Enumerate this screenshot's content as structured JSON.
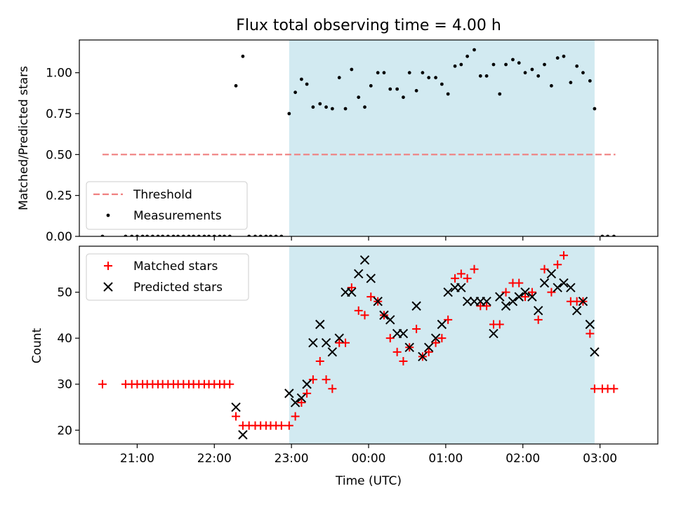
{
  "chart_data": {
    "title": "Flux total observing time = 4.00 h",
    "xlabel": "Time (UTC)",
    "x_unit": "hours (UTC, values past 24 are after midnight)",
    "xlim": [
      20.25,
      27.75
    ],
    "xticks": [
      {
        "value": 21,
        "label": "21:00"
      },
      {
        "value": 22,
        "label": "22:00"
      },
      {
        "value": 23,
        "label": "23:00"
      },
      {
        "value": 24,
        "label": "00:00"
      },
      {
        "value": 25,
        "label": "01:00"
      },
      {
        "value": 26,
        "label": "02:00"
      },
      {
        "value": 27,
        "label": "03:00"
      }
    ],
    "observing_window": {
      "start": 22.97,
      "end": 26.93,
      "color": "#add8e6"
    },
    "panels": [
      {
        "type": "scatter",
        "ylabel": "Matched/Predicted stars",
        "ylim": [
          0,
          1.2
        ],
        "yticks": [
          {
            "value": 0,
            "label": "0.00"
          },
          {
            "value": 0.25,
            "label": "0.25"
          },
          {
            "value": 0.5,
            "label": "0.50"
          },
          {
            "value": 0.75,
            "label": "0.75"
          },
          {
            "value": 1.0,
            "label": "1.00"
          }
        ],
        "legend_position": "lower-left",
        "series": [
          {
            "name": "Threshold",
            "style": "dashed-line",
            "color": "#f08080",
            "x": [
              20.55,
              27.2
            ],
            "y": [
              0.5,
              0.5
            ]
          },
          {
            "name": "Measurements",
            "style": "dot",
            "color": "#000000",
            "points": [
              [
                20.55,
                0
              ],
              [
                20.85,
                0
              ],
              [
                20.93,
                0
              ],
              [
                21.0,
                0
              ],
              [
                21.07,
                0
              ],
              [
                21.13,
                0
              ],
              [
                21.2,
                0
              ],
              [
                21.27,
                0
              ],
              [
                21.33,
                0
              ],
              [
                21.4,
                0
              ],
              [
                21.47,
                0
              ],
              [
                21.53,
                0
              ],
              [
                21.6,
                0
              ],
              [
                21.67,
                0
              ],
              [
                21.73,
                0
              ],
              [
                21.8,
                0
              ],
              [
                21.87,
                0
              ],
              [
                21.93,
                0
              ],
              [
                22.0,
                0
              ],
              [
                22.07,
                0
              ],
              [
                22.13,
                0
              ],
              [
                22.2,
                0
              ],
              [
                22.28,
                0.92
              ],
              [
                22.37,
                1.1
              ],
              [
                22.45,
                0
              ],
              [
                22.53,
                0
              ],
              [
                22.6,
                0
              ],
              [
                22.67,
                0
              ],
              [
                22.73,
                0
              ],
              [
                22.8,
                0
              ],
              [
                22.87,
                0
              ],
              [
                22.97,
                0.75
              ],
              [
                23.05,
                0.88
              ],
              [
                23.13,
                0.96
              ],
              [
                23.2,
                0.93
              ],
              [
                23.28,
                0.79
              ],
              [
                23.37,
                0.81
              ],
              [
                23.45,
                0.79
              ],
              [
                23.53,
                0.78
              ],
              [
                23.62,
                0.97
              ],
              [
                23.7,
                0.78
              ],
              [
                23.78,
                1.02
              ],
              [
                23.87,
                0.85
              ],
              [
                23.95,
                0.79
              ],
              [
                24.03,
                0.92
              ],
              [
                24.12,
                1.0
              ],
              [
                24.2,
                1.0
              ],
              [
                24.28,
                0.9
              ],
              [
                24.37,
                0.9
              ],
              [
                24.45,
                0.85
              ],
              [
                24.53,
                1.0
              ],
              [
                24.62,
                0.89
              ],
              [
                24.7,
                1.0
              ],
              [
                24.78,
                0.97
              ],
              [
                24.87,
                0.97
              ],
              [
                24.95,
                0.93
              ],
              [
                25.03,
                0.87
              ],
              [
                25.12,
                1.04
              ],
              [
                25.2,
                1.05
              ],
              [
                25.28,
                1.1
              ],
              [
                25.37,
                1.14
              ],
              [
                25.45,
                0.98
              ],
              [
                25.53,
                0.98
              ],
              [
                25.62,
                1.05
              ],
              [
                25.7,
                0.87
              ],
              [
                25.78,
                1.05
              ],
              [
                25.87,
                1.08
              ],
              [
                25.95,
                1.06
              ],
              [
                26.03,
                1.0
              ],
              [
                26.12,
                1.02
              ],
              [
                26.2,
                0.98
              ],
              [
                26.28,
                1.05
              ],
              [
                26.37,
                0.92
              ],
              [
                26.45,
                1.09
              ],
              [
                26.53,
                1.1
              ],
              [
                26.62,
                0.94
              ],
              [
                26.7,
                1.04
              ],
              [
                26.78,
                1.0
              ],
              [
                26.87,
                0.95
              ],
              [
                26.93,
                0.78
              ],
              [
                27.03,
                0
              ],
              [
                27.1,
                0
              ],
              [
                27.18,
                0
              ]
            ]
          }
        ]
      },
      {
        "type": "scatter",
        "ylabel": "Count",
        "ylim": [
          17,
          60
        ],
        "yticks": [
          {
            "value": 20,
            "label": "20"
          },
          {
            "value": 30,
            "label": "30"
          },
          {
            "value": 40,
            "label": "40"
          },
          {
            "value": 50,
            "label": "50"
          }
        ],
        "legend_position": "top-left",
        "series": [
          {
            "name": "Matched stars",
            "style": "plus",
            "color": "#ff0000",
            "points": [
              [
                20.55,
                30
              ],
              [
                20.85,
                30
              ],
              [
                20.93,
                30
              ],
              [
                21.0,
                30
              ],
              [
                21.07,
                30
              ],
              [
                21.13,
                30
              ],
              [
                21.2,
                30
              ],
              [
                21.27,
                30
              ],
              [
                21.33,
                30
              ],
              [
                21.4,
                30
              ],
              [
                21.47,
                30
              ],
              [
                21.53,
                30
              ],
              [
                21.6,
                30
              ],
              [
                21.67,
                30
              ],
              [
                21.73,
                30
              ],
              [
                21.8,
                30
              ],
              [
                21.87,
                30
              ],
              [
                21.93,
                30
              ],
              [
                22.0,
                30
              ],
              [
                22.07,
                30
              ],
              [
                22.13,
                30
              ],
              [
                22.2,
                30
              ],
              [
                22.28,
                23
              ],
              [
                22.37,
                21
              ],
              [
                22.45,
                21
              ],
              [
                22.53,
                21
              ],
              [
                22.6,
                21
              ],
              [
                22.67,
                21
              ],
              [
                22.73,
                21
              ],
              [
                22.8,
                21
              ],
              [
                22.87,
                21
              ],
              [
                22.97,
                21
              ],
              [
                23.05,
                23
              ],
              [
                23.13,
                26
              ],
              [
                23.2,
                28
              ],
              [
                23.28,
                31
              ],
              [
                23.37,
                35
              ],
              [
                23.45,
                31
              ],
              [
                23.53,
                29
              ],
              [
                23.62,
                39
              ],
              [
                23.7,
                39
              ],
              [
                23.78,
                51
              ],
              [
                23.87,
                46
              ],
              [
                23.95,
                45
              ],
              [
                24.03,
                49
              ],
              [
                24.12,
                48
              ],
              [
                24.2,
                45
              ],
              [
                24.28,
                40
              ],
              [
                24.37,
                37
              ],
              [
                24.45,
                35
              ],
              [
                24.53,
                38
              ],
              [
                24.62,
                42
              ],
              [
                24.7,
                36
              ],
              [
                24.78,
                37
              ],
              [
                24.87,
                39
              ],
              [
                24.95,
                40
              ],
              [
                25.03,
                44
              ],
              [
                25.12,
                53
              ],
              [
                25.2,
                54
              ],
              [
                25.28,
                53
              ],
              [
                25.37,
                55
              ],
              [
                25.45,
                47
              ],
              [
                25.53,
                47
              ],
              [
                25.62,
                43
              ],
              [
                25.7,
                43
              ],
              [
                25.78,
                50
              ],
              [
                25.87,
                52
              ],
              [
                25.95,
                52
              ],
              [
                26.03,
                49
              ],
              [
                26.12,
                50
              ],
              [
                26.2,
                44
              ],
              [
                26.28,
                55
              ],
              [
                26.37,
                50
              ],
              [
                26.45,
                56
              ],
              [
                26.53,
                58
              ],
              [
                26.62,
                48
              ],
              [
                26.7,
                48
              ],
              [
                26.78,
                48
              ],
              [
                26.87,
                41
              ],
              [
                26.93,
                29
              ],
              [
                27.03,
                29
              ],
              [
                27.1,
                29
              ],
              [
                27.18,
                29
              ]
            ]
          },
          {
            "name": "Predicted stars",
            "style": "x",
            "color": "#000000",
            "points": [
              [
                22.28,
                25
              ],
              [
                22.37,
                19
              ],
              [
                22.97,
                28
              ],
              [
                23.05,
                26
              ],
              [
                23.13,
                27
              ],
              [
                23.2,
                30
              ],
              [
                23.28,
                39
              ],
              [
                23.37,
                43
              ],
              [
                23.45,
                39
              ],
              [
                23.53,
                37
              ],
              [
                23.62,
                40
              ],
              [
                23.7,
                50
              ],
              [
                23.78,
                50
              ],
              [
                23.87,
                54
              ],
              [
                23.95,
                57
              ],
              [
                24.03,
                53
              ],
              [
                24.12,
                48
              ],
              [
                24.2,
                45
              ],
              [
                24.28,
                44
              ],
              [
                24.37,
                41
              ],
              [
                24.45,
                41
              ],
              [
                24.53,
                38
              ],
              [
                24.62,
                47
              ],
              [
                24.7,
                36
              ],
              [
                24.78,
                38
              ],
              [
                24.87,
                40
              ],
              [
                24.95,
                43
              ],
              [
                25.03,
                50
              ],
              [
                25.12,
                51
              ],
              [
                25.2,
                51
              ],
              [
                25.28,
                48
              ],
              [
                25.37,
                48
              ],
              [
                25.45,
                48
              ],
              [
                25.53,
                48
              ],
              [
                25.62,
                41
              ],
              [
                25.7,
                49
              ],
              [
                25.78,
                47
              ],
              [
                25.87,
                48
              ],
              [
                25.95,
                49
              ],
              [
                26.03,
                50
              ],
              [
                26.12,
                49
              ],
              [
                26.2,
                46
              ],
              [
                26.28,
                52
              ],
              [
                26.37,
                54
              ],
              [
                26.45,
                51
              ],
              [
                26.53,
                52
              ],
              [
                26.62,
                51
              ],
              [
                26.7,
                46
              ],
              [
                26.78,
                48
              ],
              [
                26.87,
                43
              ],
              [
                26.93,
                37
              ]
            ]
          }
        ]
      }
    ]
  }
}
